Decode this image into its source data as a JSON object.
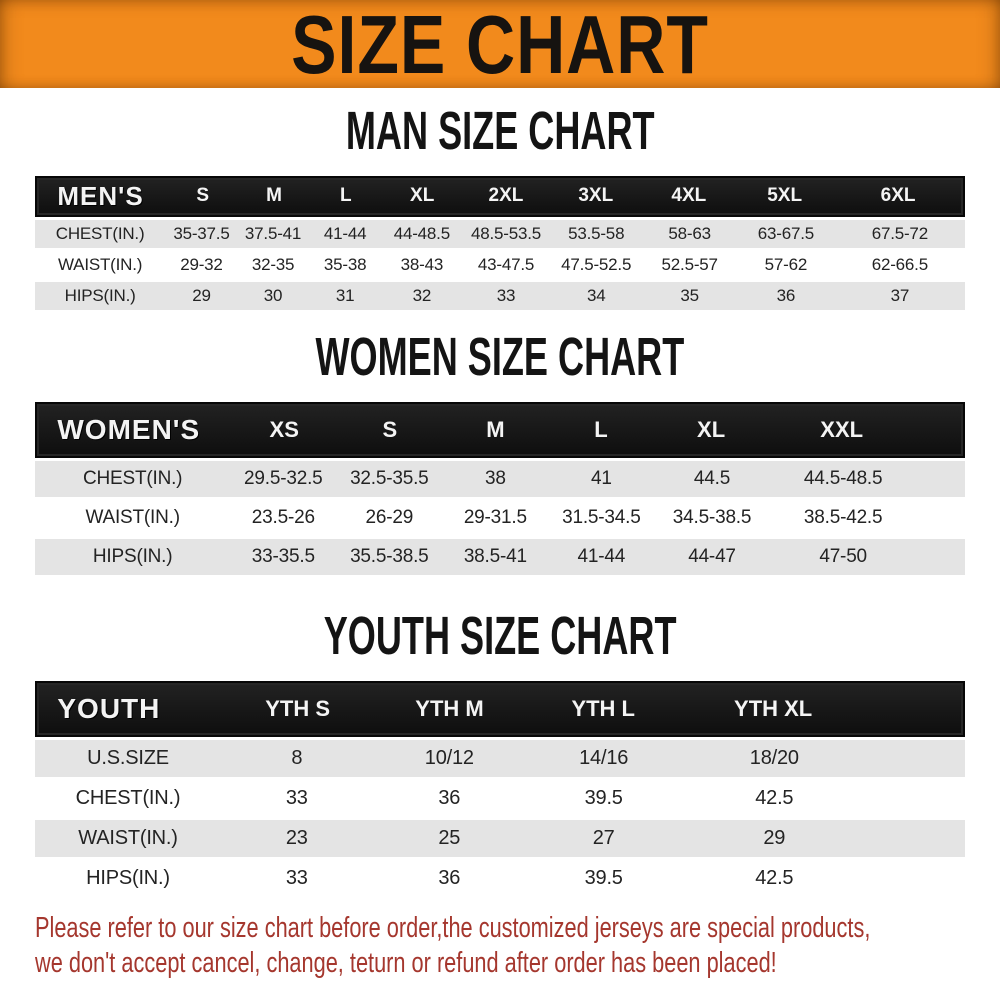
{
  "banner": {
    "title": "SIZE CHART"
  },
  "sections": [
    {
      "id": "men",
      "title": "MAN SIZE CHART",
      "header": {
        "label": "MEN'S",
        "sizes": [
          "S",
          "M",
          "L",
          "XL",
          "2XL",
          "3XL",
          "4XL",
          "5XL",
          "6XL"
        ]
      },
      "rows": [
        {
          "label": "CHEST(IN.)",
          "values": [
            "35-37.5",
            "37.5-41",
            "41-44",
            "44-48.5",
            "48.5-53.5",
            "53.5-58",
            "58-63",
            "63-67.5",
            "67.5-72"
          ]
        },
        {
          "label": "WAIST(IN.)",
          "values": [
            "29-32",
            "32-35",
            "35-38",
            "38-43",
            "43-47.5",
            "47.5-52.5",
            "52.5-57",
            "57-62",
            "62-66.5"
          ]
        },
        {
          "label": "HIPS(IN.)",
          "values": [
            "29",
            "30",
            "31",
            "32",
            "33",
            "34",
            "35",
            "36",
            "37"
          ]
        }
      ]
    },
    {
      "id": "women",
      "title": "WOMEN SIZE CHART",
      "header": {
        "label": "WOMEN'S",
        "sizes": [
          "XS",
          "S",
          "M",
          "L",
          "XL",
          "XXL"
        ]
      },
      "rows": [
        {
          "label": "CHEST(IN.)",
          "values": [
            "29.5-32.5",
            "32.5-35.5",
            "38",
            "41",
            "44.5",
            "44.5-48.5"
          ]
        },
        {
          "label": "WAIST(IN.)",
          "values": [
            "23.5-26",
            "26-29",
            "29-31.5",
            "31.5-34.5",
            "34.5-38.5",
            "38.5-42.5"
          ]
        },
        {
          "label": "HIPS(IN.)",
          "values": [
            "33-35.5",
            "35.5-38.5",
            "38.5-41",
            "41-44",
            "44-47",
            "47-50"
          ]
        }
      ]
    },
    {
      "id": "youth",
      "title": "YOUTH SIZE CHART",
      "header": {
        "label": "YOUTH",
        "sizes": [
          "YTH S",
          "YTH M",
          "YTH L",
          "YTH XL"
        ]
      },
      "rows": [
        {
          "label": "U.S.SIZE",
          "values": [
            "8",
            "10/12",
            "14/16",
            "18/20"
          ]
        },
        {
          "label": "CHEST(IN.)",
          "values": [
            "33",
            "36",
            "39.5",
            "42.5"
          ]
        },
        {
          "label": "WAIST(IN.)",
          "values": [
            "23",
            "25",
            "27",
            "29"
          ]
        },
        {
          "label": "HIPS(IN.)",
          "values": [
            "33",
            "36",
            "39.5",
            "42.5"
          ]
        }
      ]
    }
  ],
  "footer": {
    "line1": "Please refer to our size chart before order,the customized jerseys are special products,",
    "line2": "we don't accept cancel, change, teturn or refund after order has been placed!"
  },
  "colors": {
    "banner_bg": "#F28A1C",
    "banner_text": "#161310",
    "table_header_bg": "#181818",
    "table_header_text": "#F4F4F4",
    "shaded_row_bg": "#E4E4E4",
    "plain_row_bg": "#FFFFFF",
    "body_text": "#232323",
    "footer_text": "#A5372E"
  }
}
